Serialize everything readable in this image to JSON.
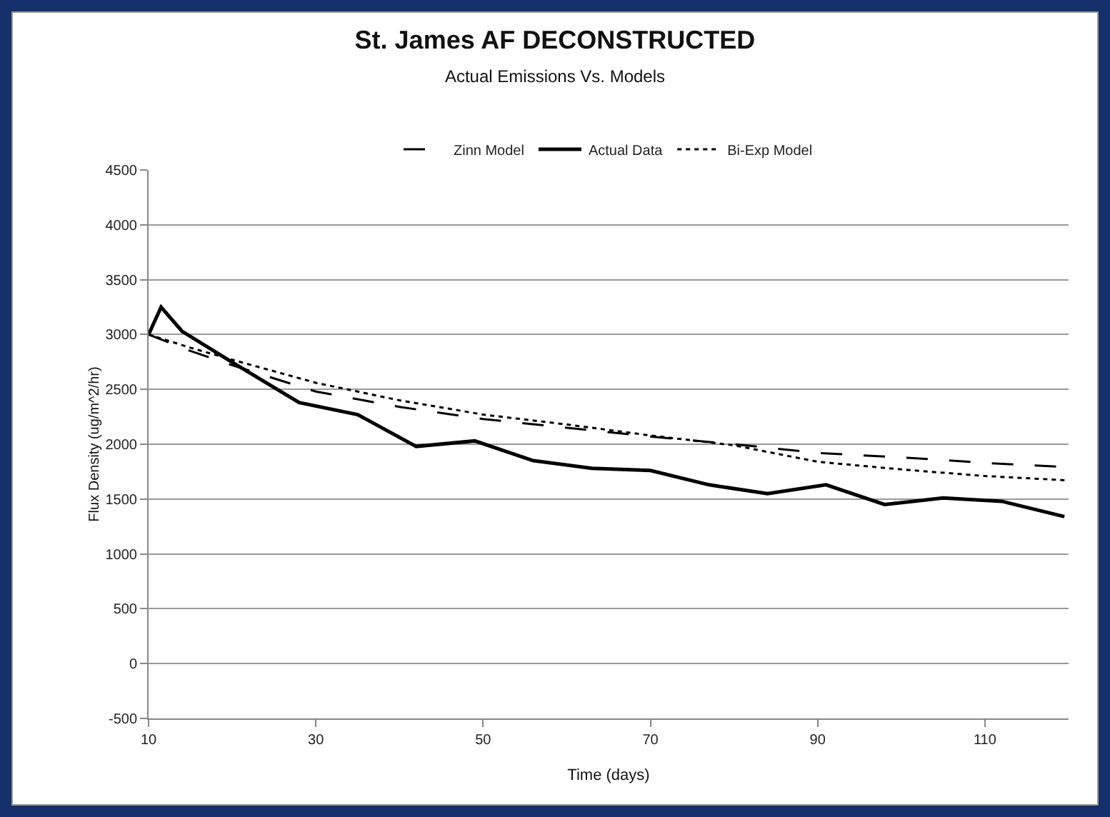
{
  "chart_data": {
    "type": "line",
    "title": "St. James AF DECONSTRUCTED",
    "subtitle": "Actual Emissions Vs. Models",
    "xlabel": "Time (days)",
    "ylabel": "Flux Density (ug/m^2/hr)",
    "xlim": [
      10,
      120
    ],
    "xticks": [
      10,
      30,
      50,
      70,
      90,
      110
    ],
    "ylim": [
      -500,
      4500
    ],
    "yticks": [
      -500,
      0,
      500,
      1000,
      1500,
      2000,
      2500,
      3000,
      3500,
      4000,
      4500
    ],
    "grid": "y",
    "legend": "top",
    "marker": "none",
    "series": [
      {
        "name": "Zinn Model",
        "color": "#000000",
        "line_style": "dashed",
        "x": [
          10,
          15,
          20,
          30,
          40,
          50,
          60,
          70,
          80,
          90,
          100,
          110,
          120
        ],
        "values": [
          3000,
          2850,
          2720,
          2480,
          2340,
          2230,
          2150,
          2070,
          2000,
          1920,
          1880,
          1830,
          1790
        ]
      },
      {
        "name": "Actual Data",
        "color": "#000000",
        "line_style": "solid",
        "x": [
          10,
          11.5,
          14,
          21,
          28,
          35,
          42,
          49,
          56,
          63,
          70,
          77,
          84,
          91,
          98,
          105,
          112,
          119.5
        ],
        "values": [
          3000,
          3250,
          3030,
          2700,
          2380,
          2270,
          1980,
          2030,
          1850,
          1780,
          1760,
          1630,
          1550,
          1630,
          1450,
          1510,
          1480,
          1340
        ]
      },
      {
        "name": "Bi-Exp Model",
        "color": "#000000",
        "line_style": "dotted",
        "x": [
          10,
          15,
          20,
          30,
          40,
          50,
          60,
          70,
          80,
          90,
          100,
          110,
          120
        ],
        "values": [
          3000,
          2880,
          2770,
          2560,
          2400,
          2270,
          2180,
          2080,
          1990,
          1840,
          1770,
          1710,
          1670
        ]
      }
    ]
  }
}
